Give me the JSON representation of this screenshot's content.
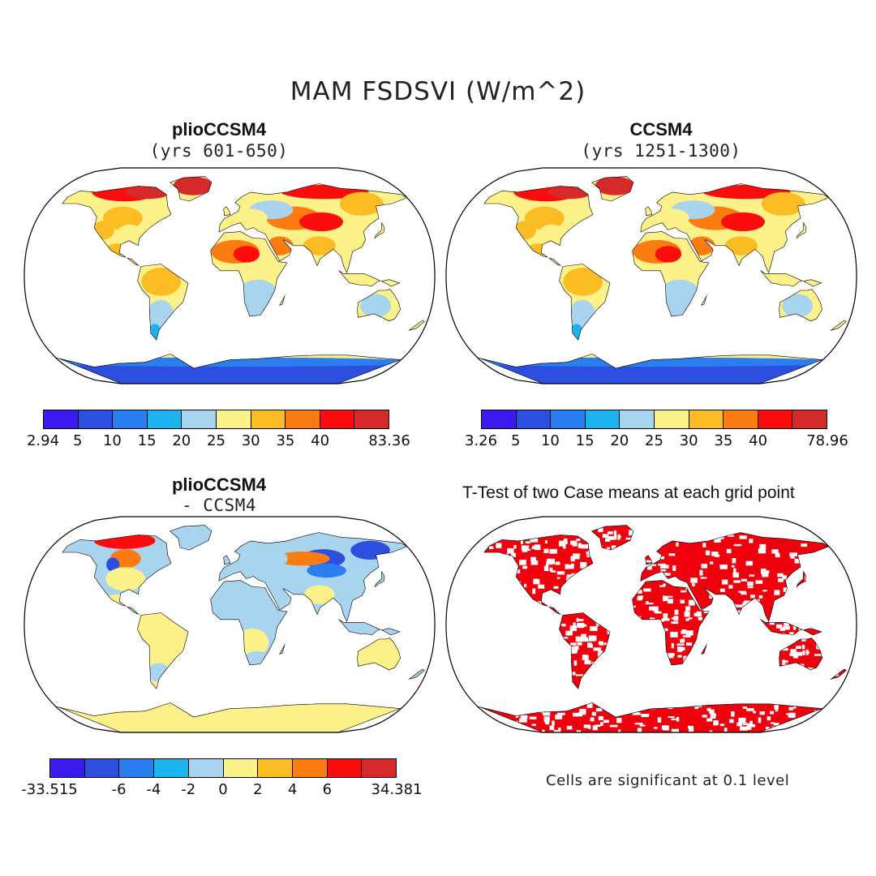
{
  "title": "MAM FSDSVI (W/m^2)",
  "colors": {
    "scale": [
      "#3a1cf0",
      "#2c4fe0",
      "#2a7ef0",
      "#1bb4f0",
      "#a8d4ef",
      "#fdf18a",
      "#fcbc24",
      "#fb7c10",
      "#fb0d0d",
      "#d62a2a"
    ],
    "ocean": "#ffffff",
    "significant": "#f0000d"
  },
  "panels": [
    {
      "title": "plioCCSM4",
      "subtitle": "(yrs 601-650)",
      "colorbar": [
        "2.94",
        "5",
        "10",
        "15",
        "20",
        "25",
        "30",
        "35",
        "40",
        "83.36"
      ]
    },
    {
      "title": "CCSM4",
      "subtitle": "(yrs 1251-1300)",
      "colorbar": [
        "3.26",
        "5",
        "10",
        "15",
        "20",
        "25",
        "30",
        "35",
        "40",
        "78.96"
      ]
    },
    {
      "title": "plioCCSM4",
      "subtitle": "- CCSM4",
      "colorbar": [
        "-33.515",
        "-6",
        "-4",
        "-2",
        "0",
        "2",
        "4",
        "6",
        "34.381"
      ]
    },
    {
      "title": "T-Test of two Case means at each grid point",
      "note": "Cells are significant at 0.1 level"
    }
  ]
}
